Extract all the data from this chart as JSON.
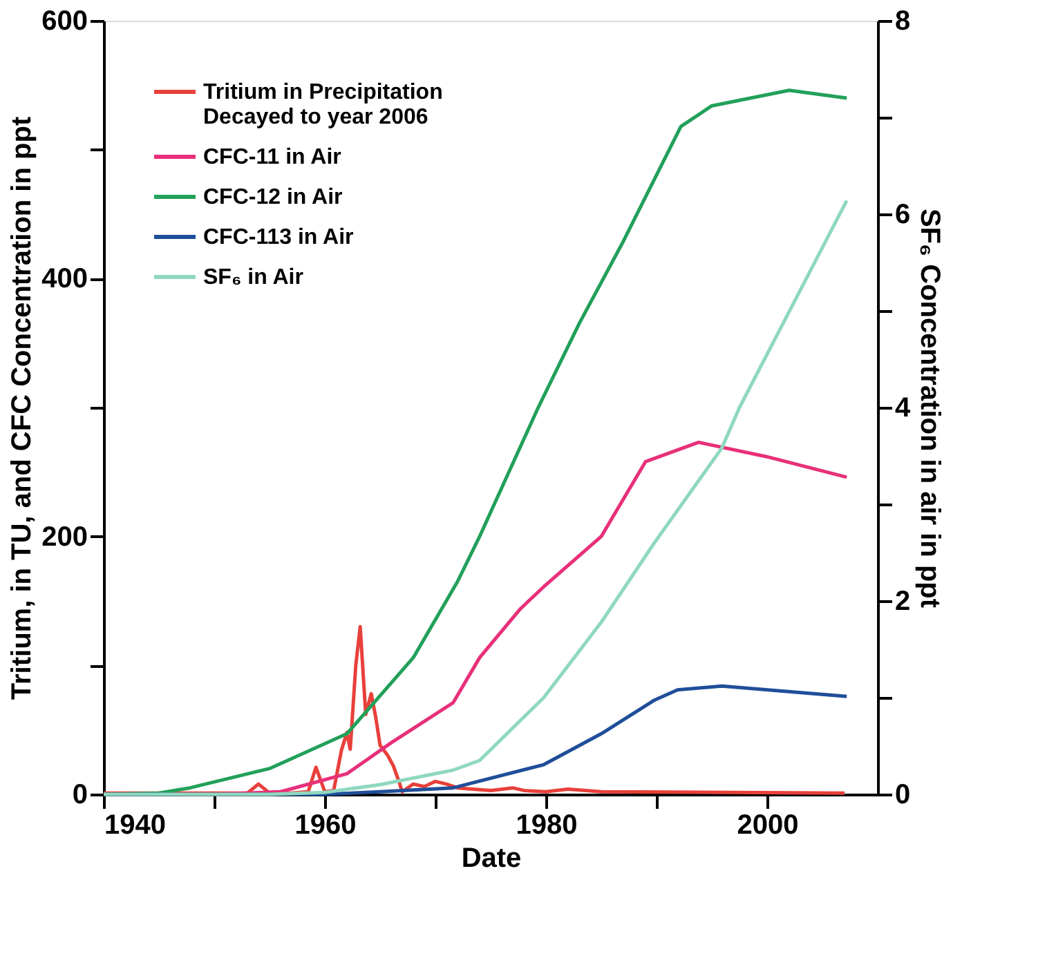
{
  "chart_data": {
    "type": "line",
    "xlabel": "Date",
    "ylabel": "Tritium, in TU, and CFC Concentration in ppt",
    "y2label": "SF₆ Concentration in air in ppt",
    "xlim": [
      1940,
      2010
    ],
    "xticks": [
      1940,
      {
        "value": 1950,
        "label": null
      },
      1960,
      {
        "value": 1970,
        "label": null
      },
      1980,
      {
        "value": 1990,
        "label": null
      },
      2000
    ],
    "ylim": [
      0,
      600
    ],
    "yticks": [
      0,
      {
        "value": 100,
        "label": null
      },
      200,
      {
        "value": 300,
        "label": null
      },
      400,
      {
        "value": 500,
        "label": null
      },
      600
    ],
    "y2lim": [
      0,
      8
    ],
    "y2ticks": [
      0,
      {
        "value": 1,
        "label": null
      },
      2,
      {
        "value": 3,
        "label": null
      },
      4,
      {
        "value": 5,
        "label": null
      },
      6,
      {
        "value": 7,
        "label": null
      },
      8
    ],
    "grid": false,
    "legend": "top left",
    "marker": "none",
    "line_style": "solid",
    "series": [
      {
        "name": "Tritium in Precipitation\nDecayed to year 2006",
        "color": "#e8403a",
        "x": [
          1940,
          1953,
          1954,
          1955,
          1957,
          1958.5,
          1959.2,
          1960,
          1960.8,
          1961.5,
          1962,
          1962.3,
          1962.8,
          1963.2,
          1963.7,
          1964.2,
          1964.6,
          1965,
          1965.7,
          1966.2,
          1966.7,
          1967,
          1968,
          1969,
          1970,
          1971,
          1972,
          1975,
          1977,
          1978,
          1980,
          1982,
          1985,
          2007
        ],
        "values": [
          1,
          1,
          8,
          1,
          1,
          2,
          21,
          2,
          3,
          34,
          48,
          35,
          100,
          130,
          62,
          78,
          60,
          38,
          30,
          22,
          10,
          2,
          8,
          6,
          10,
          8,
          5,
          3,
          5,
          3,
          2,
          4,
          2,
          1
        ]
      },
      {
        "name": "CFC-11 in Air",
        "color": "#e8307a",
        "x": [
          1950,
          1956,
          1962,
          1966,
          1971.6,
          1974,
          1977.7,
          1979.8,
          1985,
          1989,
          1993.8,
          1999.9,
          2007.2
        ],
        "values": [
          0,
          2,
          16,
          40,
          71,
          106,
          144,
          161,
          200,
          258,
          273,
          262,
          246
        ]
      },
      {
        "name": "CFC-12 in Air",
        "color": "#22a05a",
        "x": [
          1940,
          1945,
          1947.8,
          1955,
          1962,
          1968,
          1972,
          1974,
          1979.3,
          1983,
          1987,
          1992.2,
          1995,
          2002,
          2007.2
        ],
        "values": [
          0,
          1,
          5,
          20,
          47,
          106,
          165,
          200,
          300,
          365,
          429,
          518,
          534,
          546,
          540
        ]
      },
      {
        "name": "CFC-113 in Air",
        "color": "#1f4e99",
        "x": [
          1940,
          1960,
          1965,
          1971.6,
          1979.8,
          1985,
          1989.8,
          1991.9,
          1995.9,
          2007.2
        ],
        "values": [
          0,
          0,
          2,
          5,
          23,
          47,
          73,
          81,
          84,
          76
        ]
      },
      {
        "name": "SF₆ in Air",
        "color": "#8fd8c0",
        "axis": "y2",
        "x": [
          1940,
          1955,
          1960,
          1965,
          1971.6,
          1974,
          1979.8,
          1985,
          1989.8,
          1995.9,
          1997.5,
          2007.2
        ],
        "values": [
          0,
          0,
          0.02,
          0.1,
          0.25,
          0.35,
          1.0,
          1.78,
          2.6,
          3.58,
          4.0,
          6.14
        ]
      }
    ]
  }
}
